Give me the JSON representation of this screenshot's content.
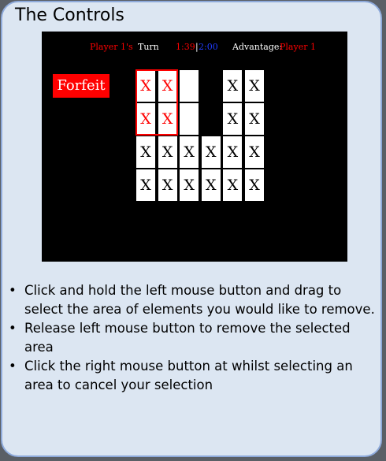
{
  "title": "The Controls",
  "hud": {
    "player_label": "Player 1's",
    "turn_label": "Turn",
    "timer_red": "1:39",
    "separator": "|",
    "timer_blue": "2:00",
    "advantage_label": "Advantage:",
    "advantage_value": "Player 1"
  },
  "forfeit_label": "Forfeit",
  "board": {
    "rows": [
      [
        "X",
        "X",
        "",
        "",
        "X",
        "X"
      ],
      [
        "X",
        "X",
        "",
        "",
        "X",
        "X"
      ],
      [
        "X",
        "X",
        "X",
        "X",
        "X",
        "X"
      ],
      [
        "X",
        "X",
        "X",
        "X",
        "X",
        "X"
      ]
    ],
    "present": [
      [
        true,
        true,
        true,
        false,
        true,
        true
      ],
      [
        true,
        true,
        true,
        false,
        true,
        true
      ],
      [
        true,
        true,
        true,
        true,
        true,
        true
      ],
      [
        true,
        true,
        true,
        true,
        true,
        true
      ]
    ],
    "selected_rows": [
      0,
      1
    ],
    "selected_cols": [
      0,
      1
    ]
  },
  "instructions": [
    "Click and hold the left mouse button and drag to select the area of elements you would like to remove.",
    "Release left mouse button to remove the selected area",
    "Click the right mouse button at whilst selecting an area to cancel your selection"
  ],
  "colors": {
    "red": "#ff0000",
    "blue": "#1f3cff",
    "card_bg": "#dce6f2",
    "card_border": "#8eaadb"
  }
}
